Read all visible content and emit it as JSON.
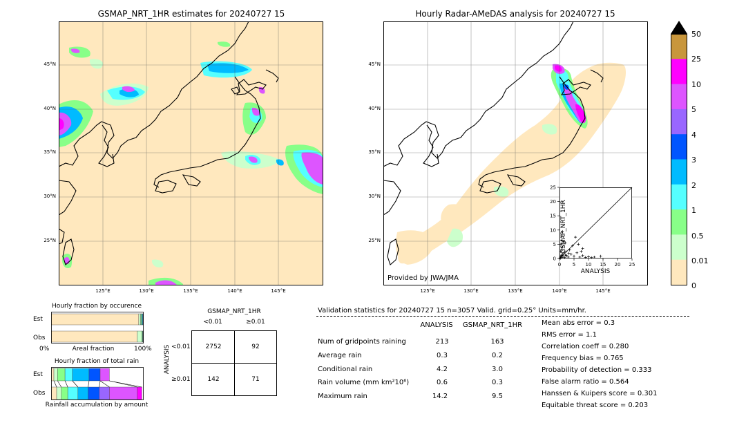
{
  "map_left": {
    "title": "GSMAP_NRT_1HR estimates for 20240727 15",
    "lat_labels": [
      "45°N",
      "40°N",
      "35°N",
      "30°N",
      "25°N"
    ],
    "lon_labels": [
      "125°E",
      "130°E",
      "135°E",
      "140°E",
      "145°E"
    ]
  },
  "map_right": {
    "title": "Hourly Radar-AMeDAS analysis for 20240727 15",
    "lat_labels": [
      "45°N",
      "40°N",
      "35°N",
      "30°N",
      "25°N"
    ],
    "lon_labels": [
      "125°E",
      "130°E",
      "135°E",
      "140°E",
      "145°E"
    ],
    "provider": "Provided by JWA/JMA"
  },
  "colorbar": {
    "labels": [
      "50",
      "25",
      "10",
      "5",
      "4",
      "3",
      "2",
      "1",
      "0.5",
      "0.01",
      "0"
    ],
    "colors": [
      "#c8963c",
      "#ff00ff",
      "#dd55ff",
      "#9966ff",
      "#0055ff",
      "#00bbff",
      "#55ffff",
      "#88ff88",
      "#ccffcc",
      "#ffe8be"
    ]
  },
  "chart_data": [
    {
      "type": "scatter",
      "xlabel": "ANALYSIS",
      "ylabel": "GSMAP_NRT_1HR",
      "xlim": [
        0,
        25
      ],
      "ylim": [
        0,
        25
      ],
      "xticks": [
        "0",
        "5",
        "10",
        "15",
        "20",
        "25"
      ],
      "yticks": [
        "0",
        "5",
        "10",
        "15",
        "20",
        "25"
      ],
      "points": [
        [
          0.3,
          0.5
        ],
        [
          0.5,
          1.0
        ],
        [
          0.8,
          0.4
        ],
        [
          1.0,
          1.5
        ],
        [
          1.2,
          0.8
        ],
        [
          1.5,
          2.0
        ],
        [
          2.0,
          1.2
        ],
        [
          0.4,
          2.5
        ],
        [
          0.6,
          3.0
        ],
        [
          1.0,
          4.0
        ],
        [
          0.5,
          5.0
        ],
        [
          0.8,
          6.5
        ],
        [
          1.0,
          9.5
        ],
        [
          0.7,
          8.0
        ],
        [
          2.5,
          1.0
        ],
        [
          3.0,
          0.5
        ],
        [
          4.0,
          1.5
        ],
        [
          5.0,
          0.8
        ],
        [
          6.0,
          2.0
        ],
        [
          7.0,
          0.5
        ],
        [
          8.0,
          1.0
        ],
        [
          9.0,
          0.4
        ],
        [
          10.0,
          0.6
        ],
        [
          11.0,
          0.3
        ],
        [
          12.0,
          0.5
        ],
        [
          14.2,
          0.8
        ],
        [
          3.5,
          3.0
        ],
        [
          4.5,
          4.5
        ],
        [
          6.5,
          5.0
        ],
        [
          8.0,
          3.5
        ],
        [
          2.0,
          5.5
        ],
        [
          1.5,
          6.0
        ],
        [
          5.5,
          7.5
        ],
        [
          7.5,
          2.5
        ],
        [
          0.2,
          0.2
        ],
        [
          0.4,
          0.1
        ],
        [
          1.8,
          0.3
        ],
        [
          2.2,
          2.5
        ],
        [
          3.2,
          1.8
        ],
        [
          0.9,
          1.1
        ]
      ]
    },
    {
      "type": "bar",
      "title": "Hourly fraction by occurence",
      "categories": [
        "Est",
        "Obs"
      ],
      "xlabel": "Areal fraction",
      "x_ticks": [
        "0%",
        "100%"
      ],
      "series": [
        {
          "values": [
            0.947,
            0.93
          ],
          "color": "#ffe8be"
        },
        {
          "values": [
            0.02,
            0.05
          ],
          "color": "#ccffcc"
        },
        {
          "values": [
            0.01,
            0.008
          ],
          "color": "#88ff88"
        },
        {
          "values": [
            0.008,
            0.004
          ],
          "color": "#55ffff"
        },
        {
          "values": [
            0.006,
            0.003
          ],
          "color": "#00bbff"
        },
        {
          "values": [
            0.003,
            0.002
          ],
          "color": "#0055ff"
        },
        {
          "values": [
            0.003,
            0.001
          ],
          "color": "#9966ff"
        },
        {
          "values": [
            0.003,
            0.002
          ],
          "color": "#dd55ff"
        }
      ]
    },
    {
      "type": "bar",
      "title": "Hourly fraction of total rain",
      "categories": [
        "Est",
        "Obs"
      ],
      "xlabel": "Rainfall accumulation by amount",
      "series": [
        {
          "values": [
            0.03,
            0.06
          ],
          "color": "#ffe8be"
        },
        {
          "values": [
            0.04,
            0.05
          ],
          "color": "#ccffcc"
        },
        {
          "values": [
            0.08,
            0.07
          ],
          "color": "#88ff88"
        },
        {
          "values": [
            0.08,
            0.11
          ],
          "color": "#55ffff"
        },
        {
          "values": [
            0.18,
            0.11
          ],
          "color": "#00bbff"
        },
        {
          "values": [
            0.12,
            0.12
          ],
          "color": "#0055ff"
        },
        {
          "values": [
            0.0,
            0.11
          ],
          "color": "#9966ff"
        },
        {
          "values": [
            0.1,
            0.3
          ],
          "color": "#dd55ff"
        },
        {
          "values": [
            0.0,
            0.05
          ],
          "color": "#ff00ff"
        }
      ]
    },
    {
      "type": "table",
      "title": "GSMAP_NRT_1HR",
      "col_headers": [
        "<0.01",
        "≥0.01"
      ],
      "row_axis_label": "ANALYSIS",
      "row_headers": [
        "<0.01",
        "≥0.01"
      ],
      "cells": [
        [
          "2752",
          "92"
        ],
        [
          "142",
          "71"
        ]
      ]
    }
  ],
  "validation": {
    "header": "Validation statistics for 20240727 15  n=3057 Valid. grid=0.25° Units=mm/hr.",
    "col_analysis": "ANALYSIS",
    "col_gsmap": "GSMAP_NRT_1HR",
    "rows": [
      {
        "label": "Num of gridpoints raining",
        "analysis": "213",
        "gsmap": "163"
      },
      {
        "label": "Average rain",
        "analysis": "0.3",
        "gsmap": "0.2"
      },
      {
        "label": "Conditional rain",
        "analysis": "4.2",
        "gsmap": "3.0"
      },
      {
        "label": "Rain volume (mm km²10⁶)",
        "analysis": "0.6",
        "gsmap": "0.3"
      },
      {
        "label": "Maximum rain",
        "analysis": "14.2",
        "gsmap": "9.5"
      }
    ],
    "scores": [
      "Mean abs error =    0.3",
      "RMS error =    1.1",
      "Correlation coeff =  0.280",
      "Frequency bias =  0.765",
      "Probability of detection =  0.333",
      "False alarm ratio =  0.564",
      "Hanssen & Kuipers score =  0.301",
      "Equitable threat score =  0.203"
    ]
  }
}
